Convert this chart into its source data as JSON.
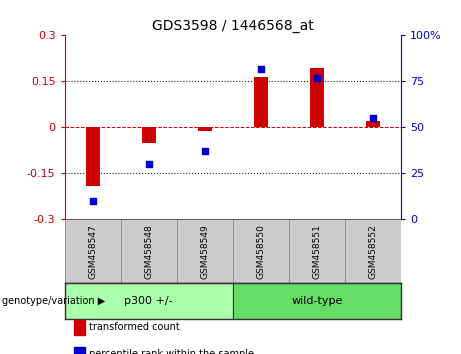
{
  "title": "GDS3598 / 1446568_at",
  "samples": [
    "GSM458547",
    "GSM458548",
    "GSM458549",
    "GSM458550",
    "GSM458551",
    "GSM458552"
  ],
  "transformed_count": [
    -0.19,
    -0.05,
    -0.01,
    0.163,
    0.195,
    0.02
  ],
  "percentile_rank": [
    10,
    30,
    37,
    82,
    77,
    55
  ],
  "group_spans": [
    {
      "label": "p300 +/-",
      "start": 0,
      "end": 2,
      "color": "#aaffaa"
    },
    {
      "label": "wild-type",
      "start": 3,
      "end": 5,
      "color": "#66dd66"
    }
  ],
  "ylim_left": [
    -0.3,
    0.3
  ],
  "ylim_right": [
    0,
    100
  ],
  "yticks_left": [
    -0.3,
    -0.15,
    0.0,
    0.15,
    0.3
  ],
  "ytick_labels_left": [
    "-0.3",
    "-0.15",
    "0",
    "0.15",
    "0.3"
  ],
  "yticks_right": [
    0,
    25,
    50,
    75,
    100
  ],
  "ytick_labels_right": [
    "0",
    "25",
    "50",
    "75",
    "100%"
  ],
  "bar_color": "#cc0000",
  "scatter_color": "#0000cc",
  "hline_color": "#cc0000",
  "dotted_color": "#222222",
  "legend_items": [
    {
      "label": "transformed count",
      "color": "#cc0000"
    },
    {
      "label": "percentile rank within the sample",
      "color": "#0000cc"
    }
  ],
  "genotype_label": "genotype/variation",
  "background_plot": "#ffffff",
  "sample_box_color": "#cccccc",
  "group_border_color": "#333333"
}
